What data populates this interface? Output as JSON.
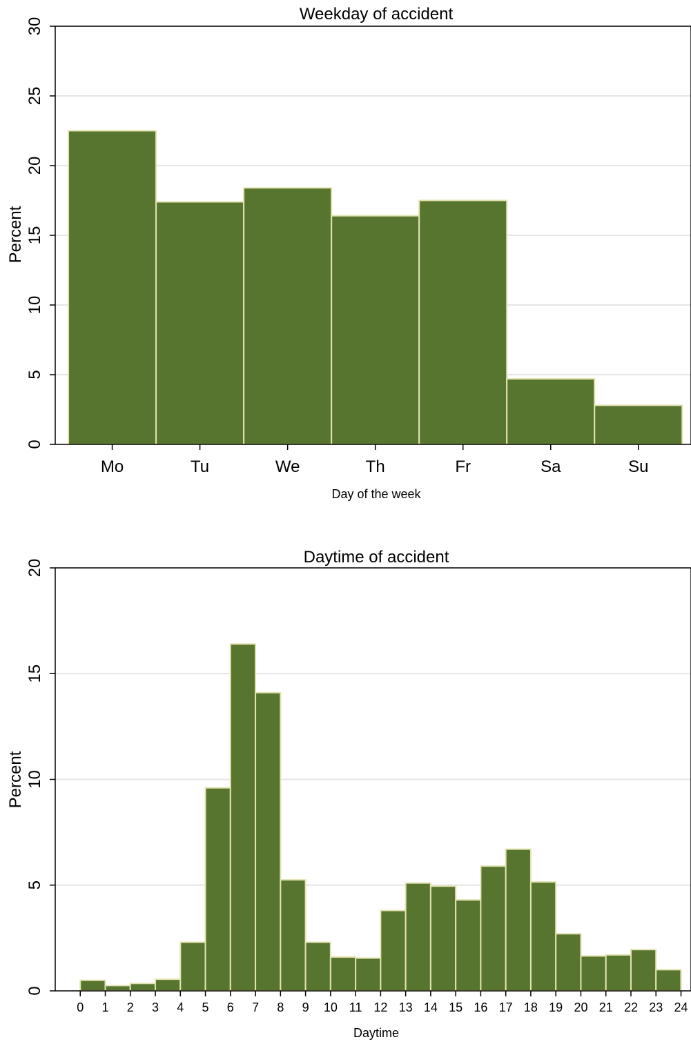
{
  "colors": {
    "bar_fill": "#57752f",
    "bar_edge": "#e3e3b2"
  },
  "chart_data": [
    {
      "type": "bar",
      "title": "Weekday of accident",
      "xlabel": "Day of the week",
      "ylabel": "Percent",
      "ylim": [
        0,
        30
      ],
      "yticks": [
        "0",
        "5",
        "10",
        "15",
        "20",
        "25",
        "30"
      ],
      "categories": [
        "Mo",
        "Tu",
        "We",
        "Th",
        "Fr",
        "Sa",
        "Su"
      ],
      "values": [
        22.5,
        17.4,
        18.4,
        16.4,
        17.5,
        4.7,
        2.8
      ],
      "grid": true
    },
    {
      "type": "bar",
      "title": "Daytime of accident",
      "xlabel": "Daytime",
      "ylabel": "Percent",
      "ylim": [
        0,
        20
      ],
      "yticks": [
        "0",
        "5",
        "10",
        "15",
        "20"
      ],
      "xticks": [
        "0",
        "1",
        "2",
        "3",
        "4",
        "5",
        "6",
        "7",
        "8",
        "9",
        "10",
        "11",
        "12",
        "13",
        "14",
        "15",
        "16",
        "17",
        "18",
        "19",
        "20",
        "21",
        "22",
        "23",
        "24"
      ],
      "bins": [
        [
          0,
          1
        ],
        [
          1,
          2
        ],
        [
          2,
          3
        ],
        [
          3,
          4
        ],
        [
          4,
          5
        ],
        [
          5,
          6
        ],
        [
          6,
          7
        ],
        [
          7,
          8
        ],
        [
          8,
          9
        ],
        [
          9,
          10
        ],
        [
          10,
          11
        ],
        [
          11,
          12
        ],
        [
          12,
          13
        ],
        [
          13,
          14
        ],
        [
          14,
          15
        ],
        [
          15,
          16
        ],
        [
          16,
          17
        ],
        [
          17,
          18
        ],
        [
          18,
          19
        ],
        [
          19,
          20
        ],
        [
          20,
          21
        ],
        [
          21,
          22
        ],
        [
          22,
          23
        ],
        [
          23,
          24
        ]
      ],
      "values": [
        0.5,
        0.25,
        0.35,
        0.55,
        2.3,
        9.6,
        16.4,
        14.1,
        5.25,
        2.3,
        1.6,
        1.55,
        3.8,
        5.1,
        4.95,
        4.3,
        5.9,
        6.7,
        5.15,
        2.7,
        1.65,
        1.7,
        1.95,
        1.0
      ],
      "grid": true
    }
  ]
}
